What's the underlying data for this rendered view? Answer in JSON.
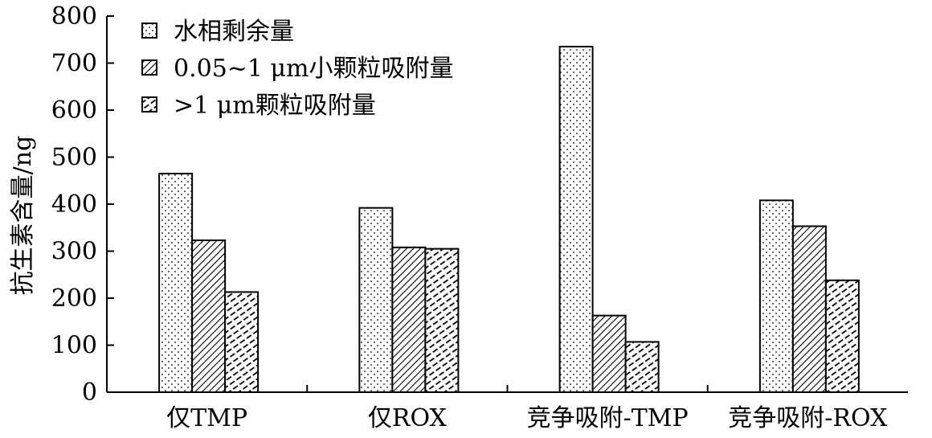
{
  "chart_data": {
    "type": "bar",
    "title": "",
    "xlabel": "",
    "ylabel": "抗生素含量/ng",
    "ylim": [
      0,
      800
    ],
    "yticks": [
      0,
      100,
      200,
      300,
      400,
      500,
      600,
      700,
      800
    ],
    "grid": false,
    "legend_position": "top-left",
    "categories": [
      "仅TMP",
      "仅ROX",
      "竞争吸附-TMP",
      "竞争吸附-ROX"
    ],
    "series": [
      {
        "name": "水相剩余量",
        "pattern": "dots",
        "values": [
          465,
          392,
          735,
          408
        ]
      },
      {
        "name": "0.05~1 μm小颗粒吸附量",
        "pattern": "diagonal-dense",
        "values": [
          323,
          308,
          163,
          353
        ]
      },
      {
        "name": ">1 μm颗粒吸附量",
        "pattern": "diagonal-dashed",
        "values": [
          213,
          305,
          107,
          238
        ]
      }
    ]
  }
}
